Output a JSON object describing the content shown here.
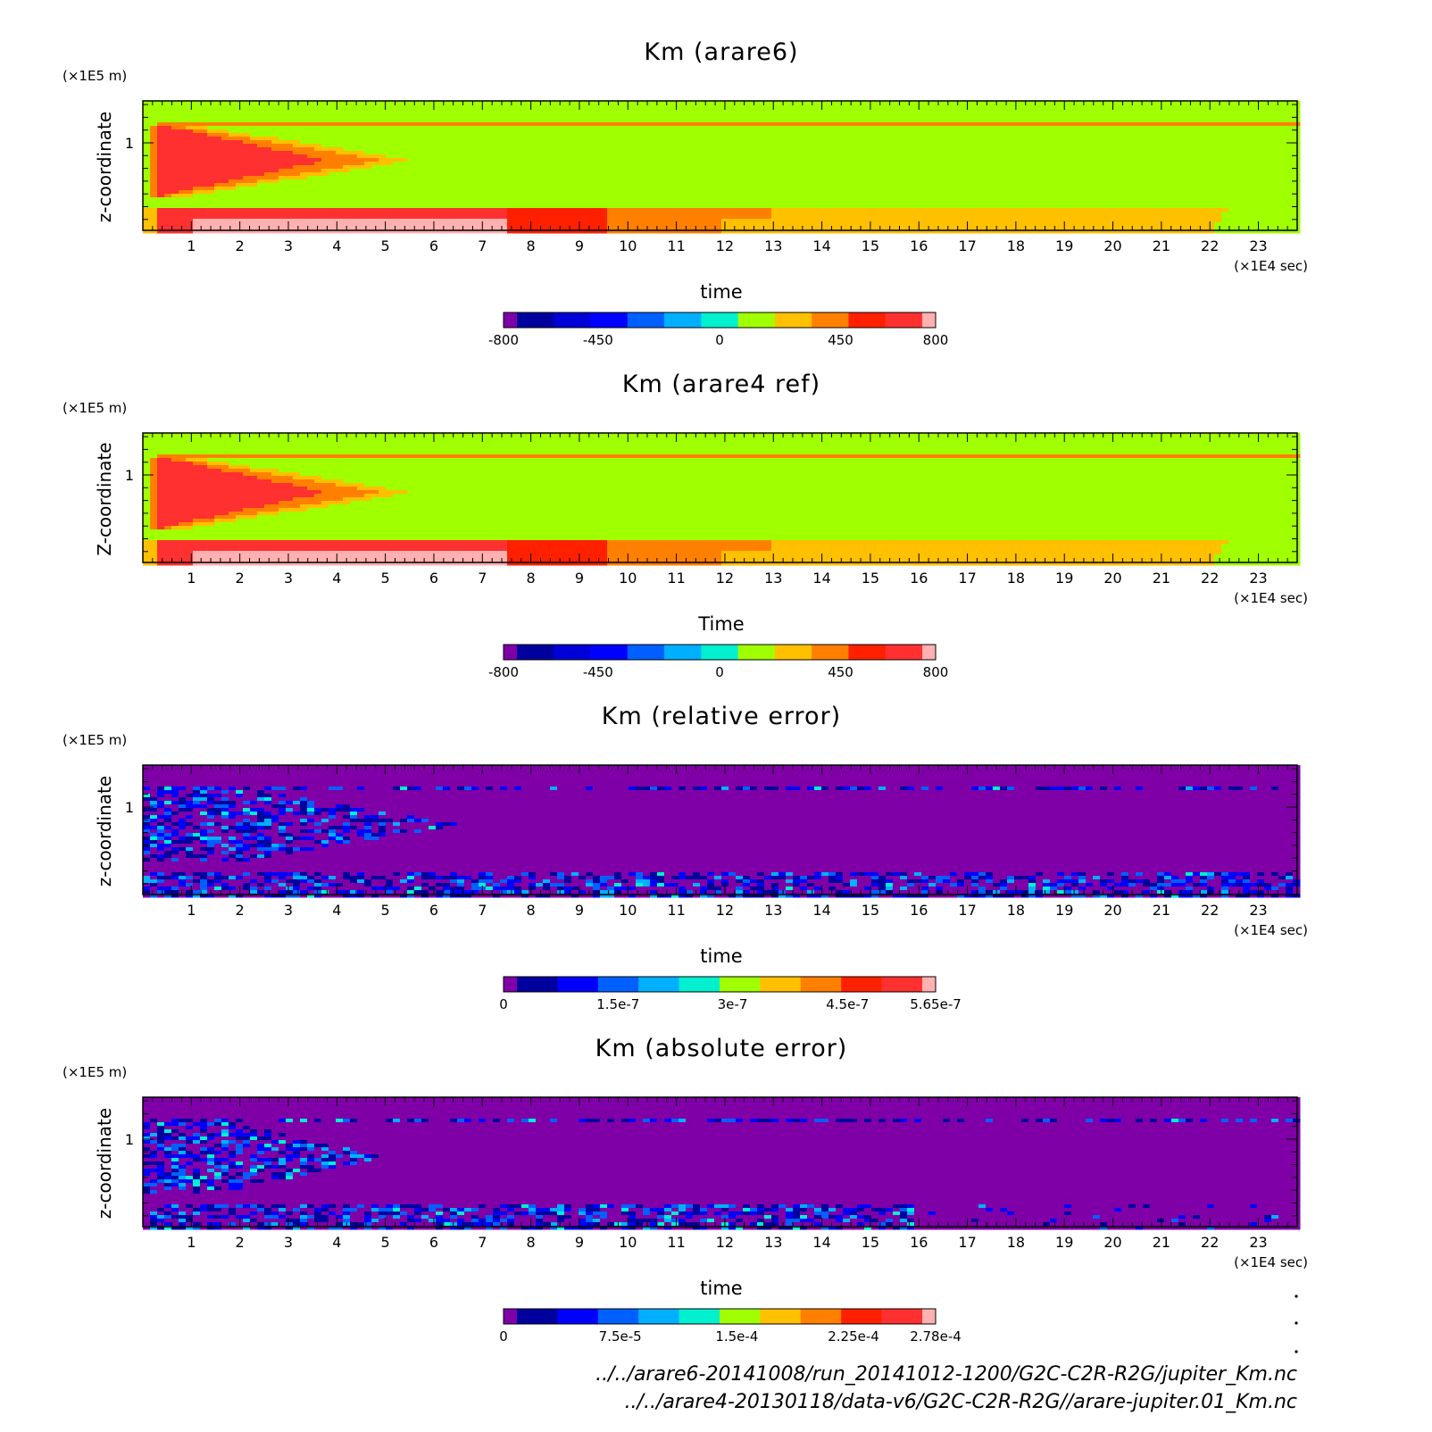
{
  "chart_data": [
    {
      "type": "heatmap",
      "title": "Km (arare6)",
      "xlabel": "time",
      "x_unit": "(×1E4 sec)",
      "ylabel": "z-coordinate",
      "y_unit": "(×1E5 m)",
      "x_ticks": [
        "1",
        "2",
        "3",
        "4",
        "5",
        "6",
        "7",
        "8",
        "9",
        "10",
        "11",
        "12",
        "13",
        "14",
        "15",
        "16",
        "17",
        "18",
        "19",
        "20",
        "21",
        "22",
        "23"
      ],
      "y_ticks": [
        "1"
      ],
      "colorbar": {
        "levels": [
          "-800",
          "-450",
          "0",
          "450",
          "800"
        ],
        "colors": [
          "#7f00a6",
          "#00009e",
          "#0000d8",
          "#0000ff",
          "#0060ff",
          "#00b0ff",
          "#00f0d0",
          "#a0ff00",
          "#ffc000",
          "#ff8000",
          "#ff2000",
          "#ff3030",
          "#ffb0b0"
        ]
      },
      "field": "km"
    },
    {
      "type": "heatmap",
      "title": "Km (arare4 ref)",
      "xlabel": "Time",
      "x_unit": "(×1E4 sec)",
      "ylabel": "Z-coordinate",
      "y_unit": "(×1E5 m)",
      "x_ticks": [
        "1",
        "2",
        "3",
        "4",
        "5",
        "6",
        "7",
        "8",
        "9",
        "10",
        "11",
        "12",
        "13",
        "14",
        "15",
        "16",
        "17",
        "18",
        "19",
        "20",
        "21",
        "22",
        "23"
      ],
      "y_ticks": [
        "1"
      ],
      "colorbar": {
        "levels": [
          "-800",
          "-450",
          "0",
          "450",
          "800"
        ],
        "colors": [
          "#7f00a6",
          "#00009e",
          "#0000d8",
          "#0000ff",
          "#0060ff",
          "#00b0ff",
          "#00f0d0",
          "#a0ff00",
          "#ffc000",
          "#ff8000",
          "#ff2000",
          "#ff3030",
          "#ffb0b0"
        ]
      },
      "field": "km"
    },
    {
      "type": "heatmap",
      "title": "Km (relative error)",
      "xlabel": "time",
      "x_unit": "(×1E4 sec)",
      "ylabel": "z-coordinate",
      "y_unit": "(×1E5 m)",
      "x_ticks": [
        "1",
        "2",
        "3",
        "4",
        "5",
        "6",
        "7",
        "8",
        "9",
        "10",
        "11",
        "12",
        "13",
        "14",
        "15",
        "16",
        "17",
        "18",
        "19",
        "20",
        "21",
        "22",
        "23"
      ],
      "y_ticks": [
        "1"
      ],
      "colorbar": {
        "levels": [
          "0",
          "1.5e-7",
          "3e-7",
          "4.5e-7",
          "5.65e-7"
        ],
        "colors": [
          "#7f00a6",
          "#00009e",
          "#0000ff",
          "#0060ff",
          "#00b0ff",
          "#00f0d0",
          "#a0ff00",
          "#ffc000",
          "#ff8000",
          "#ff2000",
          "#ff3030",
          "#ffb0b0"
        ]
      },
      "field": "err_rel"
    },
    {
      "type": "heatmap",
      "title": "Km (absolute error)",
      "xlabel": "time",
      "x_unit": "(×1E4 sec)",
      "ylabel": "z-coordinate",
      "y_unit": "(×1E5 m)",
      "x_ticks": [
        "1",
        "2",
        "3",
        "4",
        "5",
        "6",
        "7",
        "8",
        "9",
        "10",
        "11",
        "12",
        "13",
        "14",
        "15",
        "16",
        "17",
        "18",
        "19",
        "20",
        "21",
        "22",
        "23"
      ],
      "y_ticks": [
        "1"
      ],
      "colorbar": {
        "levels": [
          "0",
          "7.5e-5",
          "1.5e-4",
          "2.25e-4",
          "2.78e-4"
        ],
        "colors": [
          "#7f00a6",
          "#00009e",
          "#0000ff",
          "#0060ff",
          "#00b0ff",
          "#00f0d0",
          "#a0ff00",
          "#ffc000",
          "#ff8000",
          "#ff2000",
          "#ff3030",
          "#ffb0b0"
        ]
      },
      "field": "err_abs"
    }
  ],
  "footer": {
    "file1": "../../arare6-20141008/run_20141012-1200/G2C-C2R-R2G/jupiter_Km.nc",
    "file2": "../../arare4-20130118/data-v6/G2C-C2R-R2G//arare-jupiter.01_Km.nc"
  }
}
